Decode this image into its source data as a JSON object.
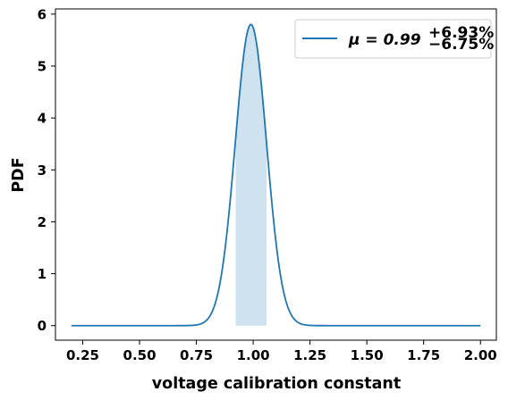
{
  "chart_data": {
    "type": "line",
    "xlabel": "voltage calibration constant",
    "ylabel": "PDF",
    "xlim": [
      0.13,
      2.07
    ],
    "ylim": [
      -0.28,
      6.1
    ],
    "x_ticks": [
      "0.25",
      "0.50",
      "0.75",
      "1.00",
      "1.25",
      "1.50",
      "1.75",
      "2.00"
    ],
    "x_tick_values": [
      0.25,
      0.5,
      0.75,
      1.0,
      1.25,
      1.5,
      1.75,
      2.0
    ],
    "y_ticks": [
      "0",
      "1",
      "2",
      "3",
      "4",
      "5",
      "6"
    ],
    "y_tick_values": [
      0,
      1,
      2,
      3,
      4,
      5,
      6
    ],
    "grid": false,
    "legend_position": "top-right",
    "series": [
      {
        "name": "μ = 0.99",
        "name_main": "μ = 0.99",
        "name_sup": "+6.93%",
        "name_sub": "−6.75%",
        "color": "#1f77b4",
        "curve": {
          "mean": 0.99,
          "peak": 5.8,
          "sigma": 0.0688,
          "x_start": 0.2,
          "x_end": 2.0
        },
        "x": [
          0.2,
          0.7,
          0.8,
          0.85,
          0.9,
          0.95,
          0.99,
          1.03,
          1.08,
          1.13,
          1.18,
          1.28,
          2.0
        ],
        "y": [
          0.0,
          0.01,
          0.1,
          0.5,
          1.7,
          4.8,
          5.8,
          4.8,
          2.5,
          0.75,
          0.2,
          0.01,
          0.0
        ]
      }
    ],
    "shaded_interval": {
      "x_low": 0.923,
      "x_high": 1.059,
      "y_top": 0.3,
      "color": "#cfe2f0"
    }
  }
}
